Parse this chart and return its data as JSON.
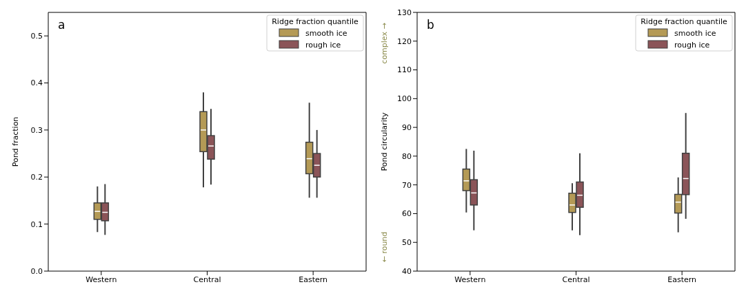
{
  "chart_data": [
    {
      "type": "box",
      "title": "a",
      "ylabel": "Pond fraction",
      "legend_title": "Ridge fraction quantile",
      "legend": "top right",
      "grid": false,
      "categories": [
        "Western",
        "Central",
        "Eastern"
      ],
      "ylim": [
        0,
        0.55
      ],
      "yticks": [
        {
          "value": 0,
          "label": "0.0"
        },
        0.1,
        0.2,
        0.3,
        0.4,
        0.5
      ],
      "series": [
        {
          "name": "smooth ice",
          "color": "#b49a56",
          "boxes": [
            {
              "low": 0.083,
              "q1": 0.11,
              "median": 0.127,
              "q3": 0.145,
              "high": 0.18
            },
            {
              "low": 0.178,
              "q1": 0.254,
              "median": 0.3,
              "q3": 0.339,
              "high": 0.38
            },
            {
              "low": 0.156,
              "q1": 0.207,
              "median": 0.239,
              "q3": 0.274,
              "high": 0.358
            }
          ]
        },
        {
          "name": "rough ice",
          "color": "#8b5458",
          "boxes": [
            {
              "low": 0.077,
              "q1": 0.107,
              "median": 0.125,
              "q3": 0.145,
              "high": 0.185
            },
            {
              "low": 0.184,
              "q1": 0.238,
              "median": 0.266,
              "q3": 0.288,
              "high": 0.345
            },
            {
              "low": 0.156,
              "q1": 0.2,
              "median": 0.225,
              "q3": 0.25,
              "high": 0.3
            }
          ]
        }
      ]
    },
    {
      "type": "box",
      "title": "b",
      "ylabel": "Pond circularity",
      "legend_title": "Ridge fraction quantile",
      "legend": "top right",
      "grid": false,
      "annotations": [
        "complex →",
        "← round"
      ],
      "categories": [
        "Western",
        "Central",
        "Eastern"
      ],
      "ylim": [
        40,
        130
      ],
      "yticks": [
        40,
        50,
        60,
        70,
        80,
        90,
        100,
        110,
        120,
        130
      ],
      "series": [
        {
          "name": "smooth ice",
          "color": "#b49a56",
          "boxes": [
            {
              "low": 60.4,
              "q1": 68.0,
              "median": 71.4,
              "q3": 75.5,
              "high": 82.5
            },
            {
              "low": 54.2,
              "q1": 60.4,
              "median": 63.0,
              "q3": 67.1,
              "high": 70.6
            },
            {
              "low": 53.5,
              "q1": 60.2,
              "median": 64.0,
              "q3": 66.7,
              "high": 72.6
            }
          ]
        },
        {
          "name": "rough ice",
          "color": "#8b5458",
          "boxes": [
            {
              "low": 54.2,
              "q1": 63.0,
              "median": 67.2,
              "q3": 71.8,
              "high": 81.9
            },
            {
              "low": 52.5,
              "q1": 62.2,
              "median": 66.4,
              "q3": 71.0,
              "high": 81.0
            },
            {
              "low": 58.2,
              "q1": 66.6,
              "median": 72.2,
              "q3": 81.0,
              "high": 95.0
            }
          ]
        }
      ]
    }
  ]
}
